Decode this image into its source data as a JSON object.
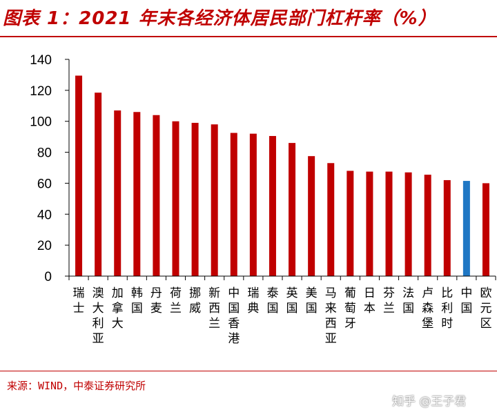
{
  "title": "图表 1：2021 年末各经济体居民部门杠杆率（%）",
  "source": "来源：WIND，中泰证券研究所",
  "watermark": "知乎 @王子君",
  "colors": {
    "accent": "#c00000",
    "bar": "#c00000",
    "highlight": "#1f77c4"
  },
  "chart_data": {
    "type": "bar",
    "title": "2021 年末各经济体居民部门杠杆率（%）",
    "xlabel": "",
    "ylabel": "",
    "ylim": [
      0,
      140
    ],
    "yticks": [
      0,
      20,
      40,
      60,
      80,
      100,
      120,
      140
    ],
    "grid": false,
    "categories": [
      "瑞士",
      "澳大利亚",
      "加拿大",
      "韩国",
      "丹麦",
      "荷兰",
      "挪威",
      "新西兰",
      "中国香港",
      "瑞典",
      "泰国",
      "英国",
      "美国",
      "马来西亚",
      "葡萄牙",
      "日本",
      "芬兰",
      "法国",
      "卢森堡",
      "比利时",
      "中国",
      "欧元区"
    ],
    "values": [
      129.5,
      118.5,
      107,
      106,
      104,
      100,
      99,
      98,
      92.5,
      92,
      90.5,
      86,
      77.5,
      73,
      68,
      67.5,
      67.5,
      67,
      65.5,
      62,
      61.5,
      60
    ],
    "highlight_category": "中国"
  }
}
